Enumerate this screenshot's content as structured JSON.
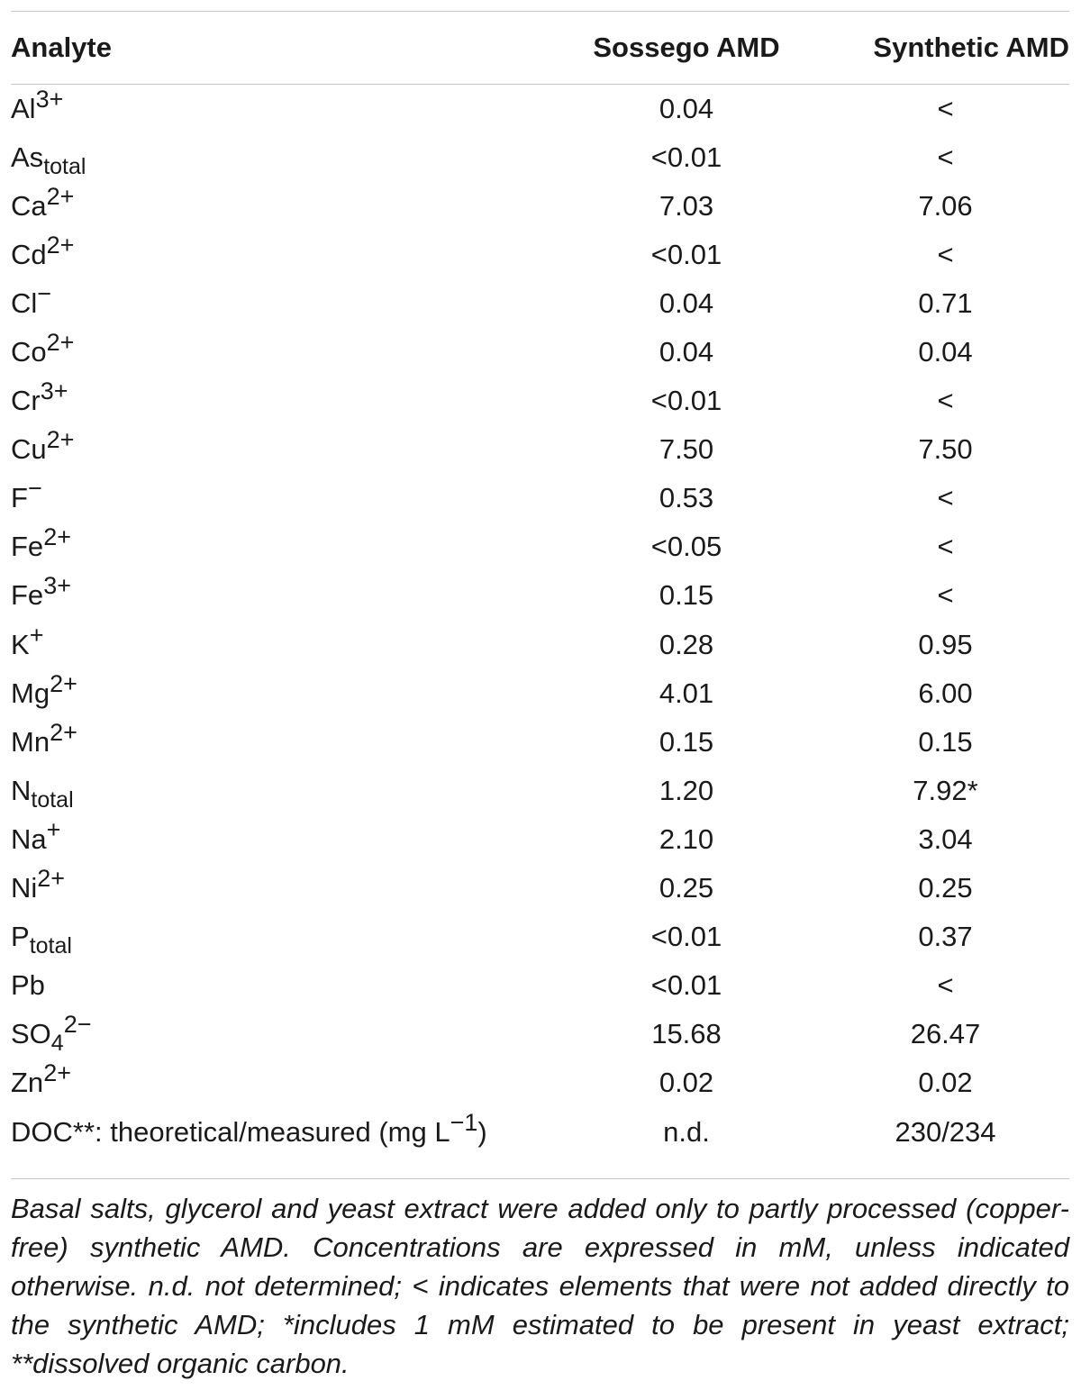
{
  "table": {
    "headers": [
      "Analyte",
      "Sossego AMD",
      "Synthetic AMD"
    ],
    "rows": [
      {
        "base": "Al",
        "sup": "3+",
        "sub": "",
        "tail": "",
        "sossego": "0.04",
        "synthetic": "<"
      },
      {
        "base": "As",
        "sup": "",
        "sub": "total",
        "tail": "",
        "sossego": "<0.01",
        "synthetic": "<"
      },
      {
        "base": "Ca",
        "sup": "2+",
        "sub": "",
        "tail": "",
        "sossego": "7.03",
        "synthetic": "7.06"
      },
      {
        "base": "Cd",
        "sup": "2+",
        "sub": "",
        "tail": "",
        "sossego": "<0.01",
        "synthetic": "<"
      },
      {
        "base": "Cl",
        "sup": "−",
        "sub": "",
        "tail": "",
        "sossego": "0.04",
        "synthetic": "0.71"
      },
      {
        "base": "Co",
        "sup": "2+",
        "sub": "",
        "tail": "",
        "sossego": "0.04",
        "synthetic": "0.04"
      },
      {
        "base": "Cr",
        "sup": "3+",
        "sub": "",
        "tail": "",
        "sossego": "<0.01",
        "synthetic": "<"
      },
      {
        "base": "Cu",
        "sup": "2+",
        "sub": "",
        "tail": "",
        "sossego": "7.50",
        "synthetic": "7.50"
      },
      {
        "base": "F",
        "sup": "−",
        "sub": "",
        "tail": "",
        "sossego": "0.53",
        "synthetic": "<"
      },
      {
        "base": "Fe",
        "sup": "2+",
        "sub": "",
        "tail": "",
        "sossego": "<0.05",
        "synthetic": "<"
      },
      {
        "base": "Fe",
        "sup": "3+",
        "sub": "",
        "tail": "",
        "sossego": "0.15",
        "synthetic": "<"
      },
      {
        "base": "K",
        "sup": "+",
        "sub": "",
        "tail": "",
        "sossego": "0.28",
        "synthetic": "0.95"
      },
      {
        "base": "Mg",
        "sup": "2+",
        "sub": "",
        "tail": "",
        "sossego": "4.01",
        "synthetic": "6.00"
      },
      {
        "base": "Mn",
        "sup": "2+",
        "sub": "",
        "tail": "",
        "sossego": "0.15",
        "synthetic": "0.15"
      },
      {
        "base": "N",
        "sup": "",
        "sub": "total",
        "tail": "",
        "sossego": "1.20",
        "synthetic": "7.92*"
      },
      {
        "base": "Na",
        "sup": "+",
        "sub": "",
        "tail": "",
        "sossego": "2.10",
        "synthetic": "3.04"
      },
      {
        "base": "Ni",
        "sup": "2+",
        "sub": "",
        "tail": "",
        "sossego": "0.25",
        "synthetic": "0.25"
      },
      {
        "base": "P",
        "sup": "",
        "sub": "total",
        "tail": "",
        "sossego": "<0.01",
        "synthetic": "0.37"
      },
      {
        "base": "Pb",
        "sup": "",
        "sub": "",
        "tail": "",
        "sossego": "<0.01",
        "synthetic": "<"
      },
      {
        "base": "SO",
        "sup": "2−",
        "sub": "4",
        "tail": "",
        "sossego": "15.68",
        "synthetic": "26.47"
      },
      {
        "base": "Zn",
        "sup": "2+",
        "sub": "",
        "tail": "",
        "sossego": "0.02",
        "synthetic": "0.02"
      },
      {
        "base": "DOC**: theoretical/measured (mg L",
        "sup": "−1",
        "sub": "",
        "tail": ")",
        "sossego": "n.d.",
        "synthetic": "230/234"
      }
    ]
  },
  "footnote": "Basal salts, glycerol and yeast extract were added only to partly processed (copper-free) synthetic AMD. Concentrations are expressed in mM, unless indicated otherwise. n.d. not determined; < indicates elements that were not added directly to the synthetic AMD; *includes 1 mM estimated to be present in yeast extract; **dissolved organic carbon."
}
